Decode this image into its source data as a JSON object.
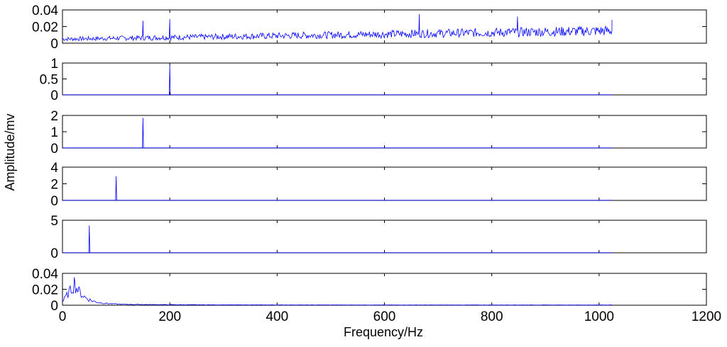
{
  "chart_data": {
    "type": "line",
    "ylabel": "Amplitude/mv",
    "xlabel": "Frequency/Hz",
    "color": "#0000ff",
    "x_ticks": [
      "0",
      "200",
      "400",
      "600",
      "800",
      "1000",
      "1200"
    ],
    "xlim": [
      0,
      1200
    ],
    "x_data_range": [
      0,
      1024
    ],
    "panels": [
      {
        "name": "panel-1",
        "ylim": [
          0,
          0.04
        ],
        "y_ticks": [
          "0",
          "0.02",
          "0.04"
        ],
        "shape": "noise",
        "baseline_start": 0.005,
        "baseline_end": 0.015,
        "noise_amplitude": 0.008,
        "peaks": [
          {
            "x": 150,
            "y": 0.027
          },
          {
            "x": 200,
            "y": 0.029
          },
          {
            "x": 665,
            "y": 0.035
          },
          {
            "x": 848,
            "y": 0.032
          }
        ]
      },
      {
        "name": "panel-2",
        "ylim": [
          0,
          1
        ],
        "y_ticks": [
          "0",
          "0.5",
          "1"
        ],
        "shape": "spike",
        "peaks": [
          {
            "x": 200,
            "y": 0.93
          }
        ]
      },
      {
        "name": "panel-3",
        "ylim": [
          0,
          2
        ],
        "y_ticks": [
          "0",
          "1",
          "2"
        ],
        "shape": "spike",
        "peaks": [
          {
            "x": 150,
            "y": 1.85
          }
        ]
      },
      {
        "name": "panel-4",
        "ylim": [
          0,
          4
        ],
        "y_ticks": [
          "0",
          "2",
          "4"
        ],
        "shape": "spike",
        "peaks": [
          {
            "x": 100,
            "y": 2.9
          }
        ]
      },
      {
        "name": "panel-5",
        "ylim": [
          0,
          5
        ],
        "y_ticks": [
          "0",
          "5"
        ],
        "shape": "spike",
        "peaks": [
          {
            "x": 50,
            "y": 4.2
          }
        ]
      },
      {
        "name": "panel-6",
        "ylim": [
          0,
          0.04
        ],
        "y_ticks": [
          "0",
          "0.02",
          "0.04"
        ],
        "shape": "lowpass",
        "peak_x": 22,
        "peak_y": 0.035
      }
    ]
  }
}
